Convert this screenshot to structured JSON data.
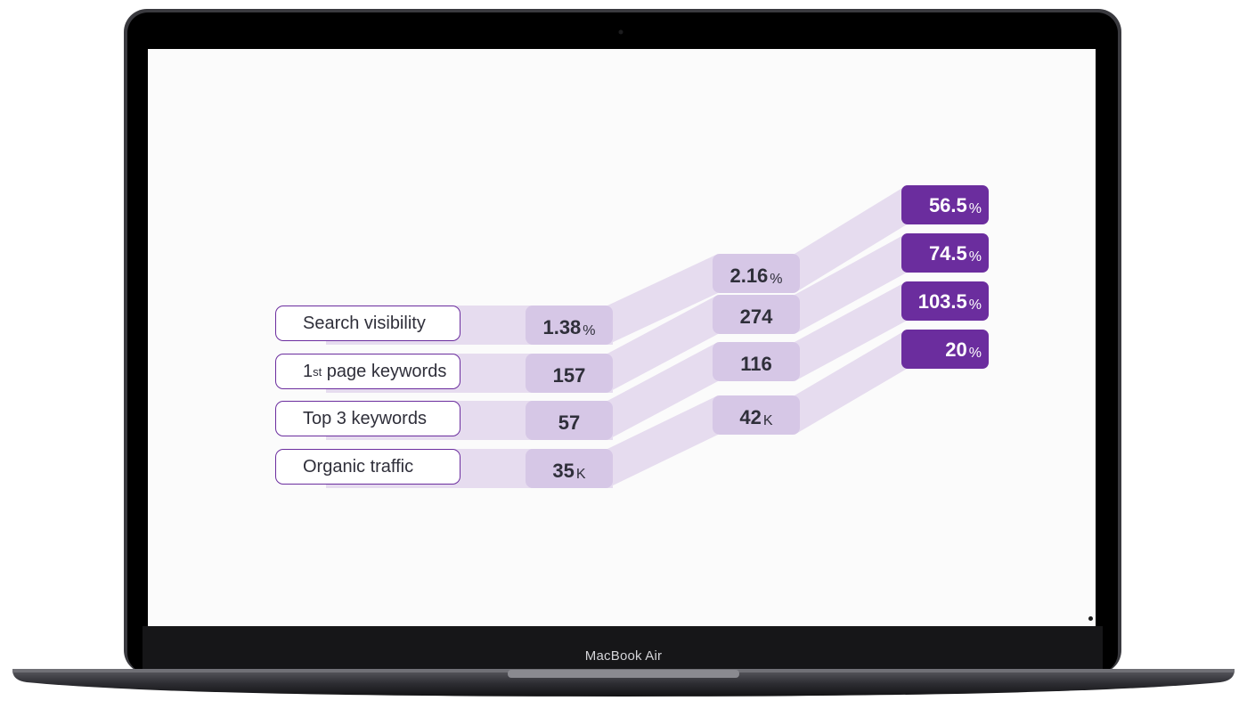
{
  "device": {
    "brand": "MacBook Air"
  },
  "colors": {
    "accent": "#6b2d9e",
    "band": "#e6dcef",
    "value_box": "#d6c7e6",
    "text": "#2f2f3a"
  },
  "metrics": [
    {
      "label": "Search visibility",
      "ordinal": "",
      "label_rest": "",
      "before": "1.38",
      "before_unit": "%",
      "after": "2.16",
      "after_unit": "%",
      "change": "56.5",
      "change_unit": "%"
    },
    {
      "label": "1",
      "ordinal": "st",
      "label_rest": " page keywords",
      "before": "157",
      "before_unit": "",
      "after": "274",
      "after_unit": "",
      "change": "74.5",
      "change_unit": "%"
    },
    {
      "label": "Top 3 keywords",
      "ordinal": "",
      "label_rest": "",
      "before": "57",
      "before_unit": "",
      "after": "116",
      "after_unit": "",
      "change": "103.5",
      "change_unit": "%"
    },
    {
      "label": "Organic traffic",
      "ordinal": "",
      "label_rest": "",
      "before": "35",
      "before_unit": "K",
      "after": "42",
      "after_unit": "K",
      "change": "20",
      "change_unit": "%"
    }
  ]
}
